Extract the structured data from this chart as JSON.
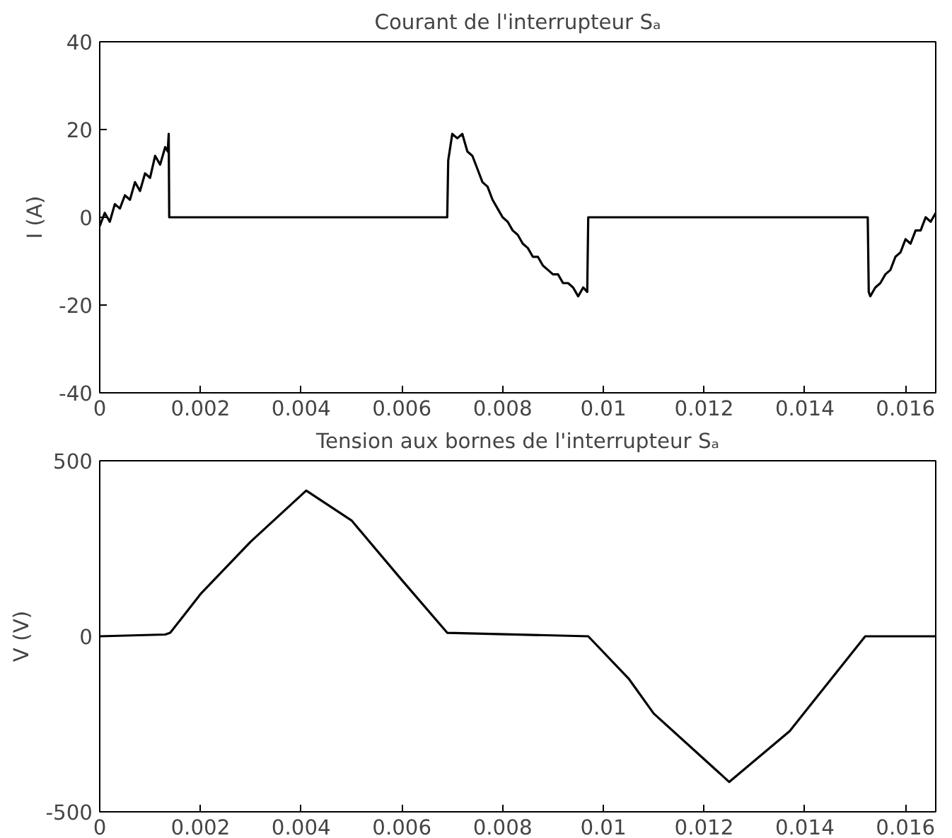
{
  "chart_data": [
    {
      "type": "line",
      "title": "Courant de l'interrupteur Sₐ",
      "ylabel": "I (A)",
      "xlim": [
        0,
        0.0166
      ],
      "ylim": [
        -40,
        40
      ],
      "xticks": [
        0,
        0.002,
        0.004,
        0.006,
        0.008,
        0.01,
        0.012,
        0.014,
        0.016
      ],
      "yticks": [
        -40,
        -20,
        0,
        20,
        40
      ],
      "grid": false,
      "series": [
        {
          "color": "#000000",
          "x": [
            0,
            0.0001,
            0.0002,
            0.0003,
            0.0004,
            0.0005,
            0.0006,
            0.0007,
            0.0008,
            0.0009,
            0.001,
            0.0011,
            0.0012,
            0.0013,
            0.00135,
            0.00137,
            0.00138,
            0.0069,
            0.00692,
            0.007,
            0.0071,
            0.0072,
            0.0073,
            0.0074,
            0.0075,
            0.0076,
            0.0077,
            0.0078,
            0.0079,
            0.008,
            0.0081,
            0.0082,
            0.0083,
            0.0084,
            0.0085,
            0.0086,
            0.0087,
            0.0088,
            0.0089,
            0.009,
            0.0091,
            0.0092,
            0.0093,
            0.0094,
            0.0095,
            0.0096,
            0.00968,
            0.0097,
            0.01525,
            0.01527,
            0.0153,
            0.0154,
            0.0155,
            0.0156,
            0.0157,
            0.0158,
            0.0159,
            0.016,
            0.0161,
            0.0162,
            0.0163,
            0.0164,
            0.0165,
            0.0166
          ],
          "values": [
            -2,
            1,
            -1,
            3,
            2,
            5,
            4,
            8,
            6,
            10,
            9,
            14,
            12,
            16,
            15,
            19,
            0,
            0,
            13,
            19,
            18,
            19,
            15,
            14,
            11,
            8,
            7,
            4,
            2,
            0,
            -1,
            -3,
            -4,
            -6,
            -7,
            -9,
            -9,
            -11,
            -12,
            -13,
            -13,
            -15,
            -15,
            -16,
            -18,
            -16,
            -17,
            0,
            0,
            -17,
            -18,
            -16,
            -15,
            -13,
            -12,
            -9,
            -8,
            -5,
            -6,
            -3,
            -3,
            0,
            -1,
            1
          ]
        }
      ]
    },
    {
      "type": "line",
      "title": "Tension aux bornes de l'interrupteur Sₐ",
      "ylabel": "V (V)",
      "xlim": [
        0,
        0.0166
      ],
      "ylim": [
        -500,
        500
      ],
      "xticks": [
        0,
        0.002,
        0.004,
        0.006,
        0.008,
        0.01,
        0.012,
        0.014,
        0.016
      ],
      "yticks": [
        -500,
        0,
        500
      ],
      "grid": false,
      "series": [
        {
          "color": "#000000",
          "x": [
            0,
            0.0013,
            0.0014,
            0.002,
            0.003,
            0.0041,
            0.005,
            0.006,
            0.0069,
            0.0097,
            0.0105,
            0.011,
            0.0125,
            0.0137,
            0.0152,
            0.0166
          ],
          "values": [
            0,
            5,
            10,
            120,
            270,
            415,
            330,
            160,
            10,
            0,
            -120,
            -220,
            -415,
            -270,
            0,
            0
          ]
        }
      ]
    }
  ]
}
